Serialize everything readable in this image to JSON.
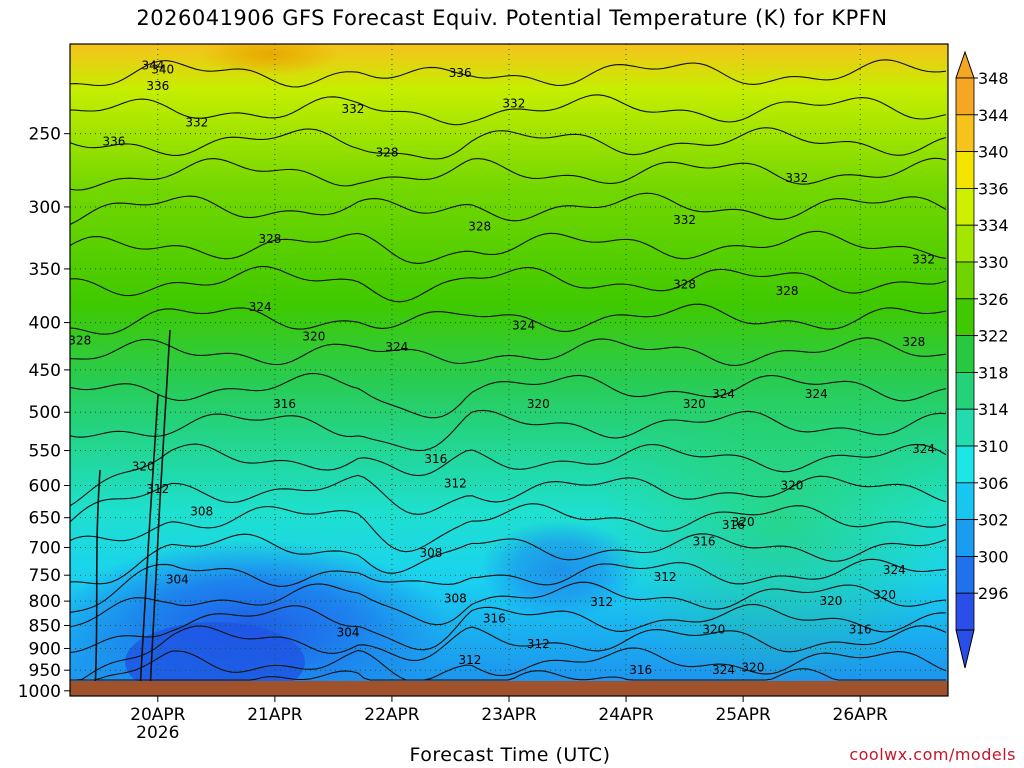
{
  "title": "2026041906 GFS Forecast Equiv. Potential Temperature (K) for KPFN",
  "xlabel": "Forecast Time (UTC)",
  "credit": "coolwx.com/models",
  "chart_data": {
    "type": "heatmap",
    "title": "2026041906 GFS Forecast Equiv. Potential Temperature (K) for KPFN",
    "xlabel": "Forecast Time (UTC)",
    "ylabel": "",
    "x_ticks": [
      {
        "label": "20APR",
        "sublabel": "2026",
        "t": "2026-04-20T00"
      },
      {
        "label": "21APR",
        "sublabel": "",
        "t": "2026-04-21T00"
      },
      {
        "label": "22APR",
        "sublabel": "",
        "t": "2026-04-22T00"
      },
      {
        "label": "23APR",
        "sublabel": "",
        "t": "2026-04-23T00"
      },
      {
        "label": "24APR",
        "sublabel": "",
        "t": "2026-04-24T00"
      },
      {
        "label": "25APR",
        "sublabel": "",
        "t": "2026-04-25T00"
      },
      {
        "label": "26APR",
        "sublabel": "",
        "t": "2026-04-26T00"
      }
    ],
    "xlim": [
      "2026-04-19T06",
      "2026-04-26T18"
    ],
    "y_ticks": [
      250,
      300,
      350,
      400,
      450,
      500,
      550,
      600,
      650,
      700,
      750,
      800,
      850,
      900,
      950,
      1000
    ],
    "ylim": [
      200,
      1013
    ],
    "y_scale": "log-pressure",
    "grid": true,
    "colorbar": {
      "labels": [
        348,
        344,
        340,
        336,
        334,
        330,
        326,
        322,
        318,
        314,
        310,
        306,
        302,
        300,
        296
      ],
      "colors": [
        "#f5a623",
        "#f7c21a",
        "#f4e400",
        "#cdf000",
        "#a5e600",
        "#6fd400",
        "#40c900",
        "#28c840",
        "#25d27a",
        "#22dcb0",
        "#1ce6e6",
        "#19c6f2",
        "#1a9cf0",
        "#1f72ec",
        "#2a4fe8"
      ],
      "position": "right"
    },
    "contour_interval": 4,
    "contour_labels": [
      {
        "v": 344,
        "t": "2026-04-19T23",
        "p": 211
      },
      {
        "v": 340,
        "t": "2026-04-20T01",
        "p": 213
      },
      {
        "v": 336,
        "t": "2026-04-20T00",
        "p": 222
      },
      {
        "v": 336,
        "t": "2026-04-19T15",
        "p": 255
      },
      {
        "v": 336,
        "t": "2026-04-22T14",
        "p": 215
      },
      {
        "v": 332,
        "t": "2026-04-20T08",
        "p": 243
      },
      {
        "v": 332,
        "t": "2026-04-21T16",
        "p": 235
      },
      {
        "v": 332,
        "t": "2026-04-23T01",
        "p": 232
      },
      {
        "v": 332,
        "t": "2026-04-25T11",
        "p": 279
      },
      {
        "v": 332,
        "t": "2026-04-24T12",
        "p": 310
      },
      {
        "v": 332,
        "t": "2026-04-26T13",
        "p": 342
      },
      {
        "v": 328,
        "t": "2026-04-21T23",
        "p": 262
      },
      {
        "v": 328,
        "t": "2026-04-22T18",
        "p": 315
      },
      {
        "v": 328,
        "t": "2026-04-20T23",
        "p": 325
      },
      {
        "v": 328,
        "t": "2026-04-24T12",
        "p": 364
      },
      {
        "v": 328,
        "t": "2026-04-25T09",
        "p": 370
      },
      {
        "v": 328,
        "t": "2026-04-19T08",
        "p": 418
      },
      {
        "v": 328,
        "t": "2026-04-26T11",
        "p": 420
      },
      {
        "v": 324,
        "t": "2026-04-20T21",
        "p": 385
      },
      {
        "v": 324,
        "t": "2026-04-23T03",
        "p": 403
      },
      {
        "v": 324,
        "t": "2026-04-22T01",
        "p": 425
      },
      {
        "v": 324,
        "t": "2026-04-24T20",
        "p": 478
      },
      {
        "v": 324,
        "t": "2026-04-25T15",
        "p": 478
      },
      {
        "v": 324,
        "t": "2026-04-26T13",
        "p": 548
      },
      {
        "v": 324,
        "t": "2026-04-24T20",
        "p": 950
      },
      {
        "v": 324,
        "t": "2026-04-26T07",
        "p": 740
      },
      {
        "v": 320,
        "t": "2026-04-21T08",
        "p": 414
      },
      {
        "v": 320,
        "t": "2026-04-23T06",
        "p": 490
      },
      {
        "v": 320,
        "t": "2026-04-24T14",
        "p": 490
      },
      {
        "v": 320,
        "t": "2026-04-19T21",
        "p": 572
      },
      {
        "v": 320,
        "t": "2026-04-25T00",
        "p": 657
      },
      {
        "v": 320,
        "t": "2026-04-25T10",
        "p": 600
      },
      {
        "v": 320,
        "t": "2026-04-24T18",
        "p": 858
      },
      {
        "v": 320,
        "t": "2026-04-25T02",
        "p": 944
      },
      {
        "v": 320,
        "t": "2026-04-25T18",
        "p": 800
      },
      {
        "v": 320,
        "t": "2026-04-26T05",
        "p": 788
      },
      {
        "v": 316,
        "t": "2026-04-21T02",
        "p": 490
      },
      {
        "v": 316,
        "t": "2026-04-22T09",
        "p": 562
      },
      {
        "v": 316,
        "t": "2026-04-24T16",
        "p": 690
      },
      {
        "v": 316,
        "t": "2026-04-24T22",
        "p": 662
      },
      {
        "v": 316,
        "t": "2026-04-22T21",
        "p": 835
      },
      {
        "v": 316,
        "t": "2026-04-24T03",
        "p": 950
      },
      {
        "v": 316,
        "t": "2026-04-26T00",
        "p": 858
      },
      {
        "v": 312,
        "t": "2026-04-20T00",
        "p": 605
      },
      {
        "v": 312,
        "t": "2026-04-22T13",
        "p": 597
      },
      {
        "v": 312,
        "t": "2026-04-24T08",
        "p": 753
      },
      {
        "v": 312,
        "t": "2026-04-23T19",
        "p": 802
      },
      {
        "v": 312,
        "t": "2026-04-23T06",
        "p": 890
      },
      {
        "v": 312,
        "t": "2026-04-22T16",
        "p": 926
      },
      {
        "v": 308,
        "t": "2026-04-20T09",
        "p": 640
      },
      {
        "v": 308,
        "t": "2026-04-22T08",
        "p": 710
      },
      {
        "v": 308,
        "t": "2026-04-22T13",
        "p": 795
      },
      {
        "v": 304,
        "t": "2026-04-20T04",
        "p": 758
      },
      {
        "v": 304,
        "t": "2026-04-21T15",
        "p": 865
      }
    ]
  }
}
